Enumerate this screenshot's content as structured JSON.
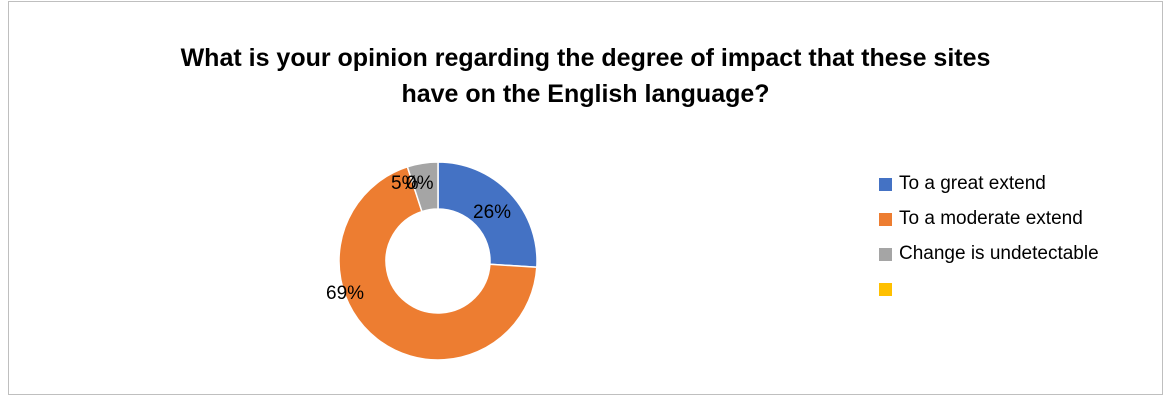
{
  "chart_data": {
    "type": "donut",
    "title_lines": [
      "What is your opinion regarding the degree of impact that these sites",
      "have on the English language?"
    ],
    "slices": [
      {
        "name": "To a great extend",
        "value": 26,
        "label": "26%",
        "color": "#4472C4"
      },
      {
        "name": "To a moderate extend",
        "value": 69,
        "label": "69%",
        "color": "#ED7D31"
      },
      {
        "name": "Change is undetectable",
        "value": 5,
        "label": "5%",
        "color": "#A5A5A5"
      },
      {
        "name": "",
        "value": 0,
        "label": "0%",
        "color": "#FFC000"
      }
    ],
    "legend_position": "right"
  }
}
